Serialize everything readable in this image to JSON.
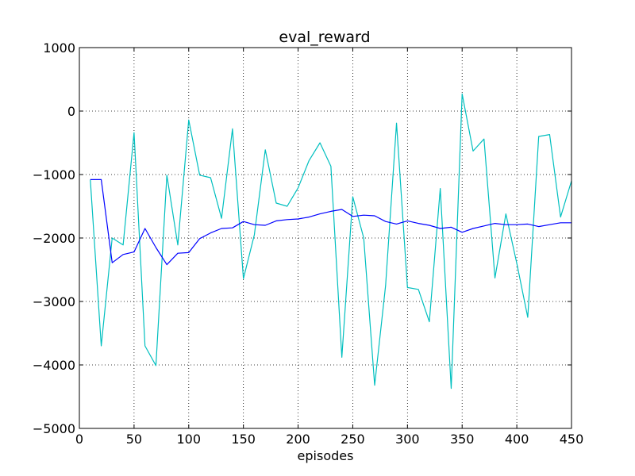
{
  "chart_data": {
    "type": "line",
    "title": "eval_reward",
    "xlabel": "episodes",
    "ylabel": "",
    "xlim": [
      0,
      450
    ],
    "ylim": [
      -5000,
      1000
    ],
    "grid": true,
    "x_ticks": [
      "0",
      "50",
      "100",
      "150",
      "200",
      "250",
      "300",
      "350",
      "400",
      "450"
    ],
    "y_ticks": [
      "−5000",
      "−4000",
      "−3000",
      "−2000",
      "−1000",
      "0",
      "1000"
    ],
    "series": [
      {
        "color": "#00bfbf",
        "x": [
          10,
          20,
          30,
          40,
          50,
          60,
          70,
          80,
          90,
          100,
          110,
          120,
          130,
          140,
          150,
          160,
          170,
          180,
          190,
          200,
          210,
          220,
          230,
          240,
          250,
          260,
          270,
          280,
          290,
          300,
          310,
          320,
          330,
          340,
          350,
          360,
          370,
          380,
          390,
          400,
          410,
          420,
          430,
          440,
          450
        ],
        "y": [
          -1080,
          -3700,
          -2000,
          -2110,
          -340,
          -3700,
          -4010,
          -1010,
          -2110,
          -140,
          -1010,
          -1050,
          -1690,
          -280,
          -2640,
          -1950,
          -610,
          -1450,
          -1500,
          -1210,
          -780,
          -500,
          -870,
          -3880,
          -1350,
          -2000,
          -4320,
          -2750,
          -190,
          -2780,
          -2810,
          -3320,
          -1220,
          -4370,
          270,
          -630,
          -440,
          -2630,
          -1620,
          -2400,
          -3250,
          -400,
          -370,
          -1670,
          -1100
        ]
      },
      {
        "color": "#0000ff",
        "x": [
          10,
          20,
          30,
          40,
          50,
          60,
          70,
          80,
          90,
          100,
          110,
          120,
          130,
          140,
          150,
          160,
          170,
          180,
          190,
          200,
          210,
          220,
          230,
          240,
          250,
          260,
          270,
          280,
          290,
          300,
          310,
          320,
          330,
          340,
          350,
          360,
          370,
          380,
          390,
          400,
          410,
          420,
          430,
          440,
          450
        ],
        "y": [
          -1080,
          -1080,
          -2390,
          -2260,
          -2220,
          -1850,
          -2150,
          -2420,
          -2240,
          -2230,
          -2010,
          -1920,
          -1850,
          -1840,
          -1740,
          -1790,
          -1800,
          -1730,
          -1710,
          -1700,
          -1670,
          -1620,
          -1580,
          -1550,
          -1660,
          -1640,
          -1650,
          -1740,
          -1780,
          -1730,
          -1770,
          -1800,
          -1850,
          -1830,
          -1910,
          -1850,
          -1810,
          -1770,
          -1790,
          -1790,
          -1780,
          -1820,
          -1790,
          -1760,
          -1760
        ]
      }
    ]
  }
}
